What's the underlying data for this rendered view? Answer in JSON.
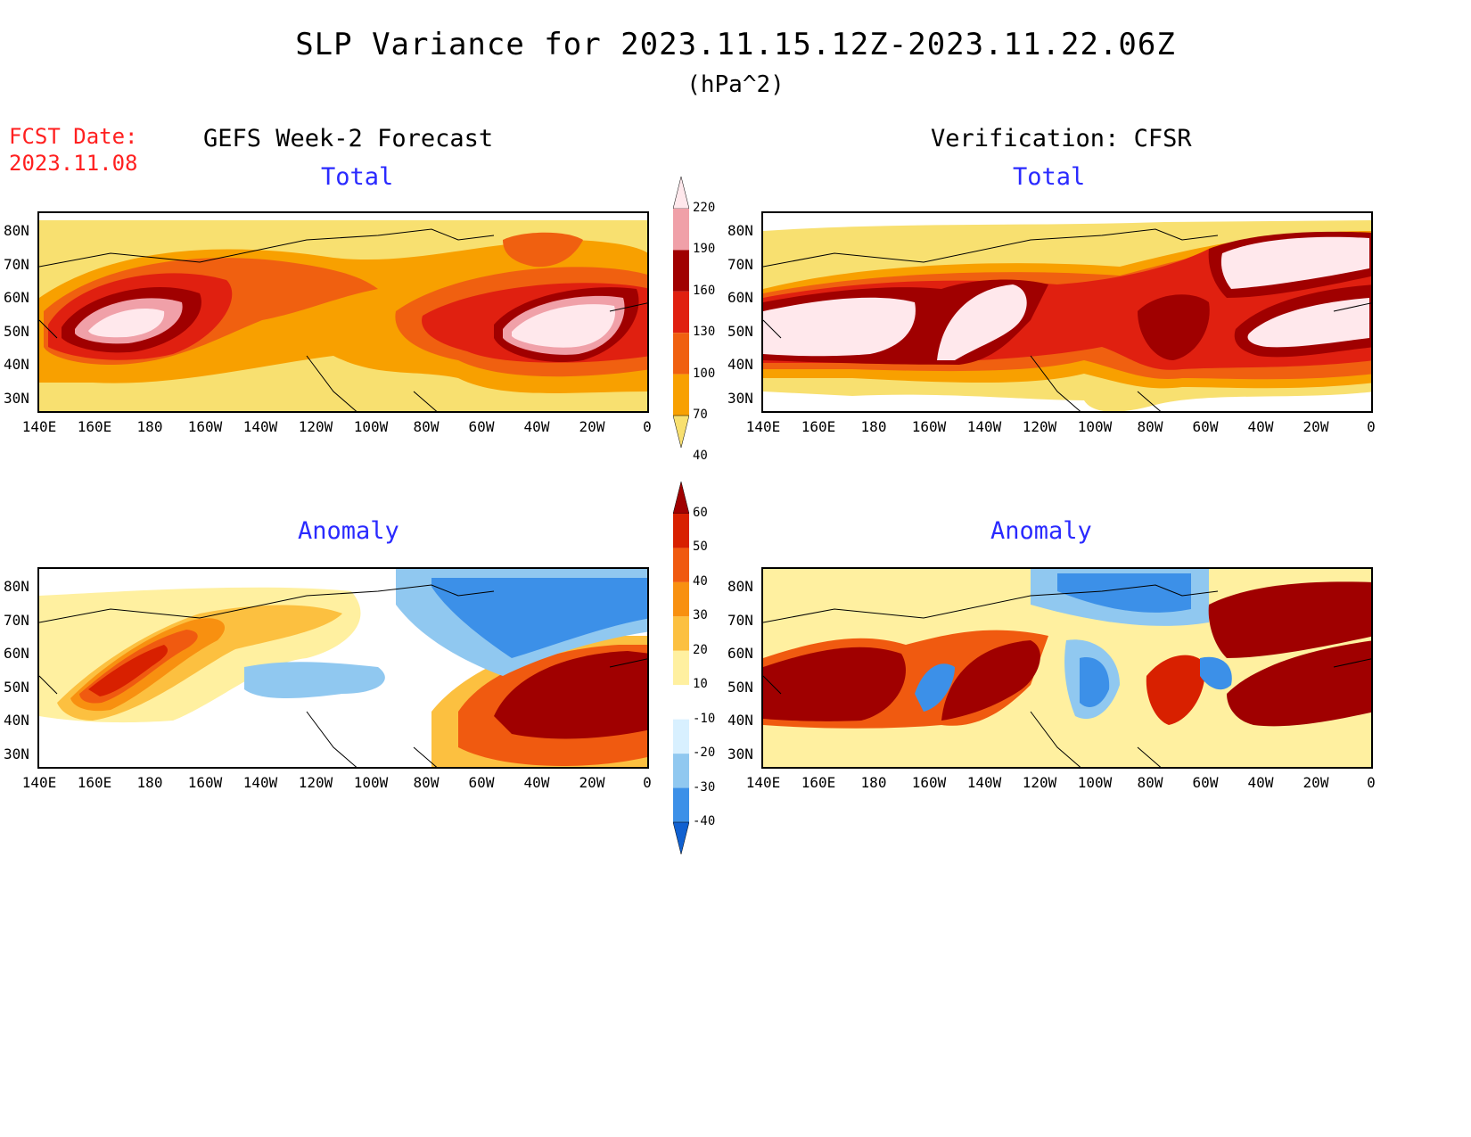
{
  "title": "SLP Variance for 2023.11.15.12Z-2023.11.22.06Z",
  "units": "(hPa^2)",
  "fcst_date_label": "FCST Date:",
  "fcst_date": "2023.11.08",
  "left_column": "GEFS Week-2 Forecast",
  "right_column": "Verification: CFSR",
  "panel_titles": {
    "total": "Total",
    "anomaly": "Anomaly"
  },
  "lat_labels": [
    "80N",
    "70N",
    "60N",
    "50N",
    "40N",
    "30N"
  ],
  "lon_labels": [
    "140E",
    "160E",
    "180",
    "160W",
    "140W",
    "120W",
    "100W",
    "80W",
    "60W",
    "40W",
    "20W",
    "0"
  ],
  "total_colorbar": {
    "levels": [
      "220",
      "190",
      "160",
      "130",
      "100",
      "70",
      "40"
    ],
    "colors": [
      "#ffe8ec",
      "#f0a0a8",
      "#a00000",
      "#e02010",
      "#f06010",
      "#f8a000",
      "#f8e070"
    ]
  },
  "anomaly_colorbar": {
    "levels": [
      "60",
      "50",
      "40",
      "30",
      "20",
      "10",
      "-10",
      "-20",
      "-30",
      "-40"
    ],
    "colors": [
      "#a00000",
      "#d82000",
      "#f05a10",
      "#f89010",
      "#fcc040",
      "#fff0a0",
      "#ffffff",
      "#d8f0ff",
      "#90c8f0",
      "#3c90e8",
      "#1060d0"
    ]
  },
  "chart_data": [
    {
      "type": "heatmap",
      "panel": "GEFS Week-2 Forecast Total",
      "units": "hPa^2",
      "colorbar_levels": [
        40,
        70,
        100,
        130,
        160,
        190,
        220
      ],
      "regions": [
        {
          "area": "North Pacific (near 170E, 47N)",
          "value_range": [
            190,
            220
          ]
        },
        {
          "area": "North Atlantic (near 35W, 47N)",
          "value_range": [
            190,
            220
          ]
        },
        {
          "area": "Gulf of Alaska / Bering",
          "value_range": [
            100,
            160
          ]
        },
        {
          "area": "Greenland east coast (near 40W, 74N)",
          "value_range": [
            100,
            130
          ]
        },
        {
          "area": "Central North America",
          "value_range": [
            40,
            100
          ]
        }
      ]
    },
    {
      "type": "heatmap",
      "panel": "Verification: CFSR Total",
      "units": "hPa^2",
      "colorbar_levels": [
        40,
        70,
        100,
        130,
        160,
        190,
        220
      ],
      "regions": [
        {
          "area": "North Pacific (near 165E, 48N)",
          "value_range": [
            190,
            220
          ]
        },
        {
          "area": "Gulf of Alaska (near 150W, 52N)",
          "value_range": [
            190,
            220
          ]
        },
        {
          "area": "North Atlantic (near 30W, 48N)",
          "value_range": [
            190,
            220
          ]
        },
        {
          "area": "Greenland Sea / Iceland (near 30W, 72N)",
          "value_range": [
            190,
            220
          ]
        },
        {
          "area": "Hudson Bay / Labrador",
          "value_range": [
            130,
            190
          ]
        }
      ]
    },
    {
      "type": "heatmap",
      "panel": "GEFS Week-2 Forecast Anomaly",
      "units": "hPa^2",
      "colorbar_levels": [
        -40,
        -30,
        -20,
        -10,
        10,
        20,
        30,
        40,
        50,
        60
      ],
      "regions": [
        {
          "area": "North Atlantic (near 30W, 47N)",
          "value_range": [
            50,
            60
          ]
        },
        {
          "area": "Kamchatka / Bering (near 160E, 52N)",
          "value_range": [
            40,
            60
          ]
        },
        {
          "area": "Greenland / Baffin",
          "value_range": [
            -40,
            -20
          ]
        },
        {
          "area": "Western North America (near 110W, 50N)",
          "value_range": [
            -30,
            -10
          ]
        }
      ]
    },
    {
      "type": "heatmap",
      "panel": "Verification: CFSR Anomaly",
      "units": "hPa^2",
      "colorbar_levels": [
        -40,
        -30,
        -20,
        -10,
        10,
        20,
        30,
        40,
        50,
        60
      ],
      "regions": [
        {
          "area": "North Pacific (near 170E, 47N)",
          "value_range": [
            50,
            60
          ]
        },
        {
          "area": "Gulf of Alaska band (near 140W, 58N)",
          "value_range": [
            50,
            60
          ]
        },
        {
          "area": "North Atlantic (near 30W, 47N)",
          "value_range": [
            50,
            60
          ]
        },
        {
          "area": "Greenland Sea (near 20W, 72N)",
          "value_range": [
            50,
            60
          ]
        },
        {
          "area": "Gulf of Alaska interior (near 155W, 50N)",
          "value_range": [
            -40,
            -30
          ]
        },
        {
          "area": "Central US (near 100W, 48N)",
          "value_range": [
            -40,
            -20
          ]
        }
      ]
    }
  ]
}
